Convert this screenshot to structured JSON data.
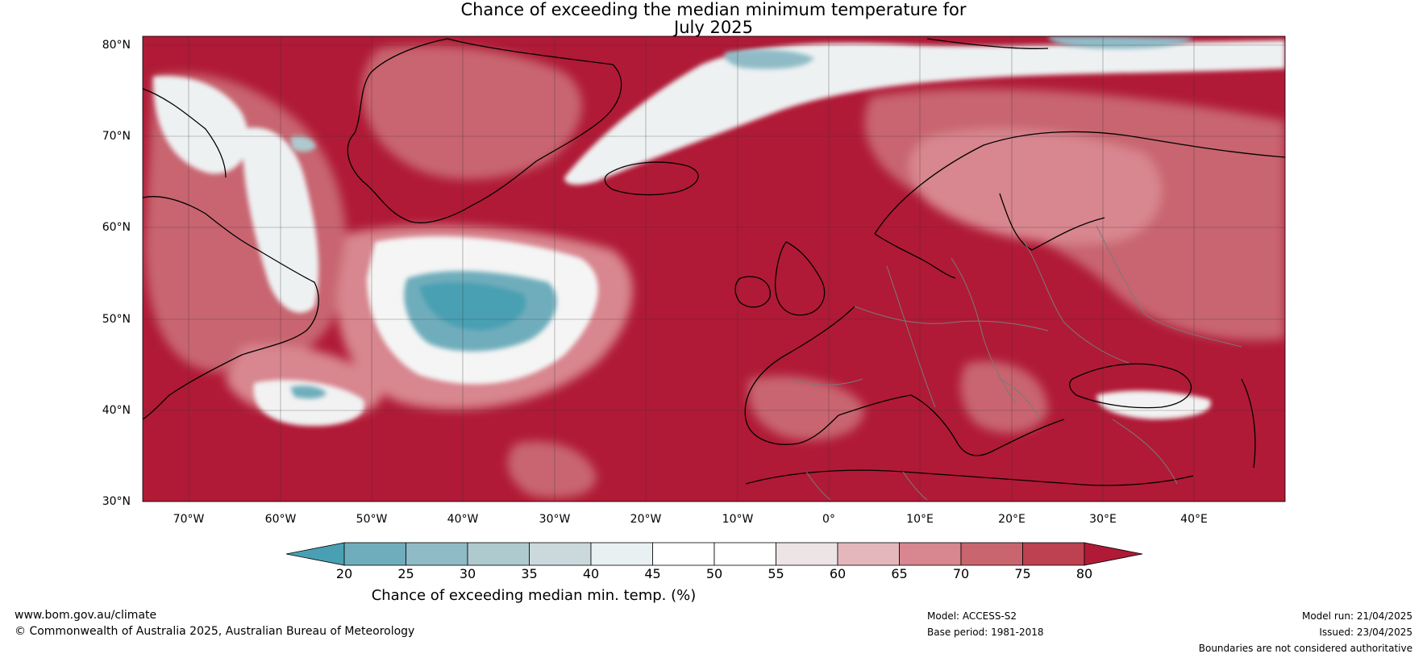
{
  "title": {
    "line1": "Chance of exceeding the median minimum temperature for",
    "line2": "July 2025"
  },
  "map": {
    "lat_labels": [
      "80°N",
      "70°N",
      "60°N",
      "50°N",
      "40°N",
      "30°N"
    ],
    "lon_labels": [
      "70°W",
      "60°W",
      "50°W",
      "40°W",
      "30°W",
      "20°W",
      "10°W",
      "0°",
      "10°E",
      "20°E",
      "30°E",
      "40°E"
    ],
    "colors": {
      "dominant": "#b01a36",
      "ocean_warm": "#b01a36",
      "coast": "#000000",
      "borders": "#7a7a7a"
    }
  },
  "colorbar": {
    "ticks": [
      "20",
      "25",
      "30",
      "35",
      "40",
      "45",
      "50",
      "55",
      "60",
      "65",
      "70",
      "75",
      "80"
    ],
    "colors": [
      "#4aa0b3",
      "#6fadbc",
      "#8fbbc6",
      "#aecacf",
      "#ccd9dc",
      "#e9f0f1",
      "#ffffff",
      "#ffffff",
      "#ede4e5",
      "#e3b7bc",
      "#d8868f",
      "#c8656f",
      "#bd4150",
      "#b01a36"
    ],
    "title": "Chance of exceeding median min. temp. (%)"
  },
  "footer": {
    "website": "www.bom.gov.au/climate",
    "copyright": "© Commonwealth of Australia 2025, Australian Bureau of Meteorology",
    "model": "Model: ACCESS-S2",
    "base_period": "Base period: 1981-2018",
    "model_run": "Model run: 21/04/2025",
    "issued": "Issued: 23/04/2025",
    "disclaimer": "Boundaries are not considered authoritative"
  }
}
